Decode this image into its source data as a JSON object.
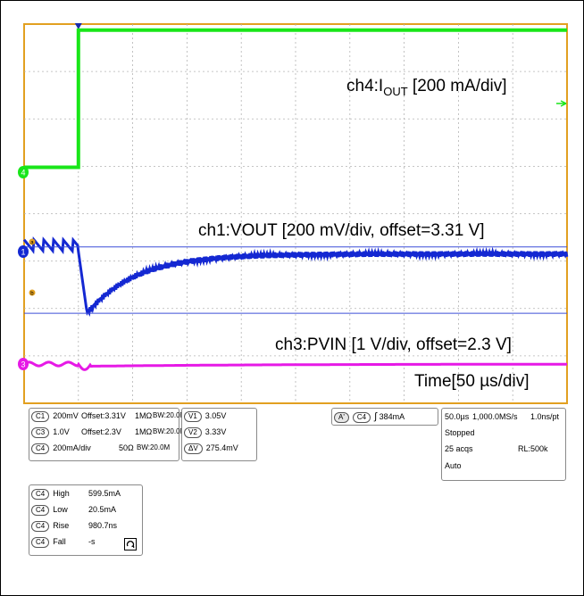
{
  "colors": {
    "frame": "#e2a020",
    "grid": "#b4b4b4",
    "ch4": "#19e619",
    "ch1": "#1428d2",
    "ch3": "#e619e6",
    "cursor": "#3c4fd8",
    "trigger_marker": "#1a2aa8"
  },
  "chart_data": {
    "type": "line",
    "x_unit": "µs",
    "x_range": [
      -50,
      450
    ],
    "x_per_div": 50,
    "trigger_time_us": 0,
    "series": [
      {
        "name": "ch4:IOUT",
        "channel": "C4",
        "unit": "mA",
        "per_div": 200,
        "step_from": 20.5,
        "step_to": 599.5,
        "step_at_us": 0
      },
      {
        "name": "ch1:VOUT",
        "channel": "C1",
        "unit": "V",
        "per_div": 0.2,
        "offset": 3.31,
        "ripple_before_step": [
          3.31,
          3.36
        ],
        "ripple_period_us": 9,
        "undershoot_min": 3.05,
        "undershoot_at_us": 8,
        "settled": 3.3
      },
      {
        "name": "ch3:PVIN",
        "channel": "C3",
        "unit": "V",
        "per_div": 1,
        "offset": 2.3,
        "nominal": 2.3,
        "ripple_before_step_amplitude": 0.08,
        "settled": 2.3
      }
    ],
    "cursors": {
      "V1": 3.05,
      "V2": 3.33,
      "dV": 0.2754
    }
  },
  "labels": {
    "ch4_prefix": "ch4:I",
    "ch4_sub": "OUT",
    "ch4_suffix": " [200 mA/div]",
    "ch1": "ch1:VOUT [200 mV/div,  offset=3.31 V]",
    "ch3": "ch3:PVIN [1 V/div,  offset=2.3 V]",
    "time": "Time[50 µs/div]"
  },
  "markers": {
    "ch4": "4",
    "ch1": "1",
    "ch3": "3",
    "cursor_a": "a",
    "cursor_b": "b"
  },
  "panel_channels": {
    "rows": [
      {
        "ch": "C1",
        "scale": "200mV",
        "offset": "Offset:3.31V",
        "imp": "1MΩ",
        "bw": "BW:20.0M"
      },
      {
        "ch": "C3",
        "scale": "1.0V",
        "offset": "Offset:2.3V",
        "imp": "1MΩ",
        "bw": "BW:20.0M"
      },
      {
        "ch": "C4",
        "scale": "200mA/div",
        "offset": "",
        "imp": "50Ω",
        "bw": "BW:20.0M"
      }
    ]
  },
  "panel_cursors": {
    "rows": [
      {
        "label": "V1",
        "value": "3.05V"
      },
      {
        "label": "V2",
        "value": "3.33V"
      },
      {
        "label": "ΔV",
        "value": "275.4mV"
      }
    ]
  },
  "panel_trigger": {
    "mode": "A'",
    "ch": "C4",
    "slope": "∫",
    "level": "384mA"
  },
  "panel_timebase": {
    "timediv": "50.0µs",
    "rate": "1,000.0MS/s",
    "pt": "1.0ns/pt",
    "state": "Stopped",
    "acqs": "25 acqs",
    "rl": "RL:500k",
    "mode": "Auto"
  },
  "panel_measure": {
    "rows": [
      {
        "ch": "C4",
        "label": "High",
        "value": "599.5mA"
      },
      {
        "ch": "C4",
        "label": "Low",
        "value": "20.5mA"
      },
      {
        "ch": "C4",
        "label": "Rise",
        "value": "980.7ns"
      },
      {
        "ch": "C4",
        "label": "Fall",
        "value": "-s"
      }
    ]
  }
}
